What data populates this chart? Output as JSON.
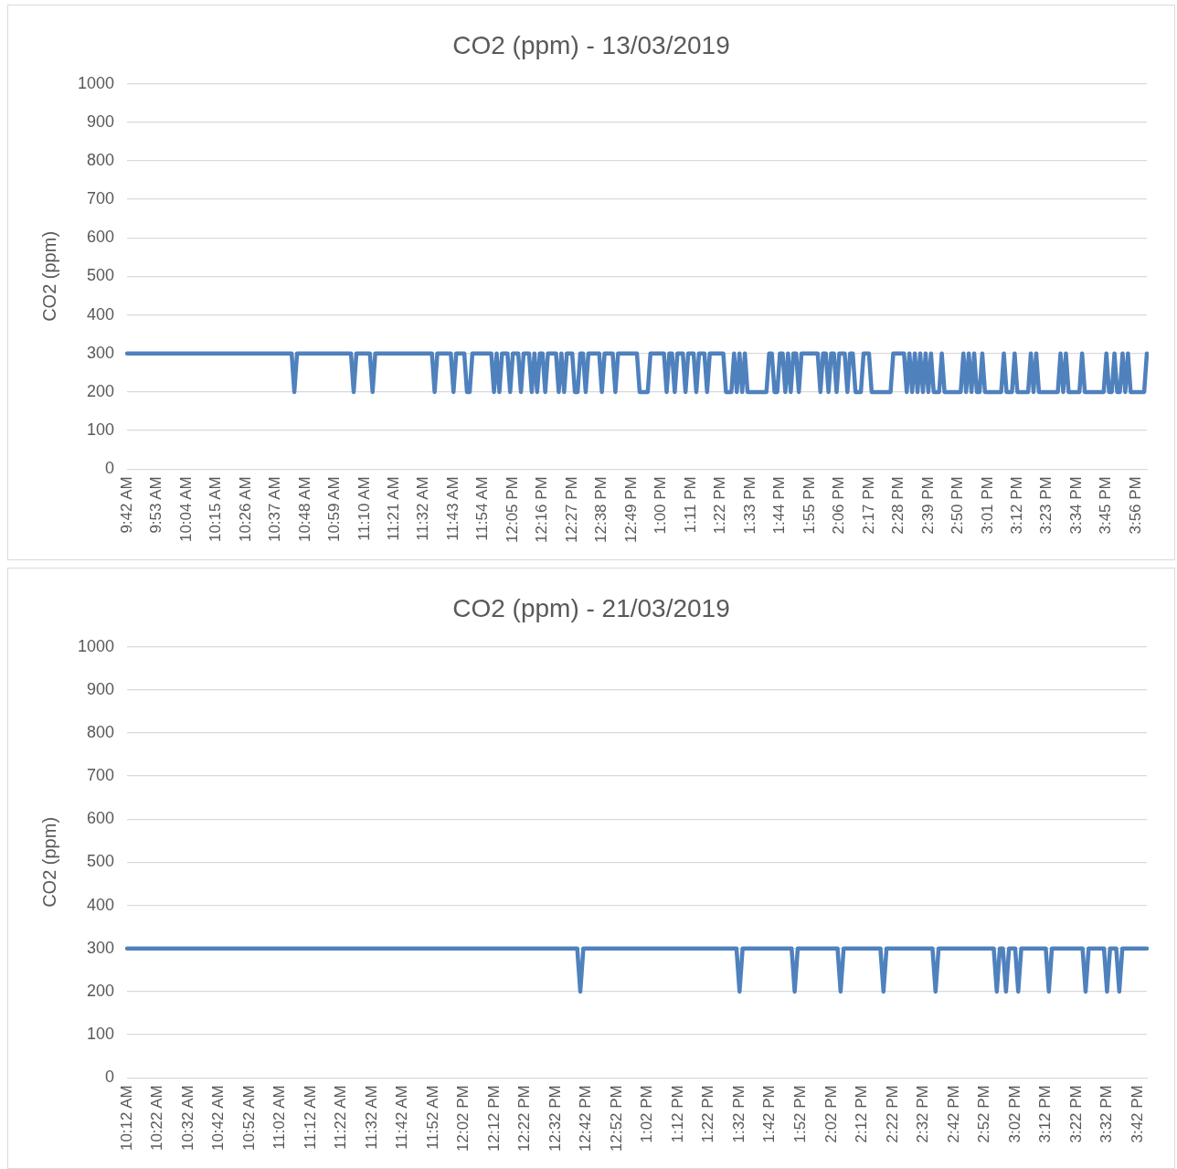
{
  "chart_data": [
    {
      "type": "line",
      "title": "CO2 (ppm) - 13/03/2019",
      "ylabel": "CO2 (ppm)",
      "ylim": [
        0,
        1000
      ],
      "yticks": [
        0,
        100,
        200,
        300,
        400,
        500,
        600,
        700,
        800,
        900,
        1000
      ],
      "grid": "y",
      "marker": "none",
      "categories": [
        "9:42 AM",
        null,
        null,
        null,
        null,
        null,
        null,
        null,
        null,
        null,
        null,
        "9:53 AM",
        null,
        null,
        null,
        null,
        null,
        null,
        null,
        null,
        null,
        null,
        "10:04 AM",
        null,
        null,
        null,
        null,
        null,
        null,
        null,
        null,
        null,
        null,
        "10:15 AM",
        null,
        null,
        null,
        null,
        null,
        null,
        null,
        null,
        null,
        null,
        "10:26 AM",
        null,
        null,
        null,
        null,
        null,
        null,
        null,
        null,
        null,
        null,
        "10:37 AM",
        null,
        null,
        null,
        null,
        null,
        null,
        null,
        null,
        null,
        null,
        "10:48 AM",
        null,
        null,
        null,
        null,
        null,
        null,
        null,
        null,
        null,
        null,
        "10:59 AM",
        null,
        null,
        null,
        null,
        null,
        null,
        null,
        null,
        null,
        null,
        "11:10 AM",
        null,
        null,
        null,
        null,
        null,
        null,
        null,
        null,
        null,
        null,
        "11:21 AM",
        null,
        null,
        null,
        null,
        null,
        null,
        null,
        null,
        null,
        null,
        "11:32 AM",
        null,
        null,
        null,
        null,
        null,
        null,
        null,
        null,
        null,
        null,
        "11:43 AM",
        null,
        null,
        null,
        null,
        null,
        null,
        null,
        null,
        null,
        null,
        "11:54 AM",
        null,
        null,
        null,
        null,
        null,
        null,
        null,
        null,
        null,
        null,
        "12:05 PM",
        null,
        null,
        null,
        null,
        null,
        null,
        null,
        null,
        null,
        null,
        "12:16 PM",
        null,
        null,
        null,
        null,
        null,
        null,
        null,
        null,
        null,
        null,
        "12:27 PM",
        null,
        null,
        null,
        null,
        null,
        null,
        null,
        null,
        null,
        null,
        "12:38 PM",
        null,
        null,
        null,
        null,
        null,
        null,
        null,
        null,
        null,
        null,
        "12:49 PM",
        null,
        null,
        null,
        null,
        null,
        null,
        null,
        null,
        null,
        null,
        "1:00 PM",
        null,
        null,
        null,
        null,
        null,
        null,
        null,
        null,
        null,
        null,
        "1:11 PM",
        null,
        null,
        null,
        null,
        null,
        null,
        null,
        null,
        null,
        null,
        "1:22 PM",
        null,
        null,
        null,
        null,
        null,
        null,
        null,
        null,
        null,
        null,
        "1:33 PM",
        null,
        null,
        null,
        null,
        null,
        null,
        null,
        null,
        null,
        null,
        "1:44 PM",
        null,
        null,
        null,
        null,
        null,
        null,
        null,
        null,
        null,
        null,
        "1:55 PM",
        null,
        null,
        null,
        null,
        null,
        null,
        null,
        null,
        null,
        null,
        "2:06 PM",
        null,
        null,
        null,
        null,
        null,
        null,
        null,
        null,
        null,
        null,
        "2:17 PM",
        null,
        null,
        null,
        null,
        null,
        null,
        null,
        null,
        null,
        null,
        "2:28 PM",
        null,
        null,
        null,
        null,
        null,
        null,
        null,
        null,
        null,
        null,
        "2:39 PM",
        null,
        null,
        null,
        null,
        null,
        null,
        null,
        null,
        null,
        null,
        "2:50 PM",
        null,
        null,
        null,
        null,
        null,
        null,
        null,
        null,
        null,
        null,
        "3:01 PM",
        null,
        null,
        null,
        null,
        null,
        null,
        null,
        null,
        null,
        null,
        "3:12 PM",
        null,
        null,
        null,
        null,
        null,
        null,
        null,
        null,
        null,
        null,
        "3:23 PM",
        null,
        null,
        null,
        null,
        null,
        null,
        null,
        null,
        null,
        null,
        "3:34 PM",
        null,
        null,
        null,
        null,
        null,
        null,
        null,
        null,
        null,
        null,
        "3:45 PM",
        null,
        null,
        null,
        null,
        null,
        null,
        null,
        null,
        null,
        null,
        "3:56 PM",
        null,
        null,
        null,
        null
      ],
      "series": [
        {
          "color": "#4f81bd",
          "values": [
            300,
            300,
            300,
            300,
            300,
            300,
            300,
            300,
            300,
            300,
            300,
            300,
            300,
            300,
            300,
            300,
            300,
            300,
            300,
            300,
            300,
            300,
            300,
            300,
            300,
            300,
            300,
            300,
            300,
            300,
            300,
            300,
            300,
            300,
            300,
            300,
            300,
            300,
            300,
            300,
            300,
            300,
            300,
            300,
            300,
            300,
            300,
            300,
            300,
            300,
            300,
            300,
            300,
            300,
            300,
            300,
            300,
            300,
            300,
            300,
            300,
            300,
            200,
            300,
            300,
            300,
            300,
            300,
            300,
            300,
            300,
            300,
            300,
            300,
            300,
            300,
            300,
            300,
            300,
            300,
            300,
            300,
            300,
            300,
            200,
            300,
            300,
            300,
            300,
            300,
            300,
            200,
            300,
            300,
            300,
            300,
            300,
            300,
            300,
            300,
            300,
            300,
            300,
            300,
            300,
            300,
            300,
            300,
            300,
            300,
            300,
            300,
            300,
            300,
            200,
            300,
            300,
            300,
            300,
            300,
            300,
            200,
            300,
            300,
            300,
            300,
            200,
            200,
            300,
            300,
            300,
            300,
            300,
            300,
            300,
            300,
            200,
            300,
            200,
            300,
            300,
            300,
            200,
            300,
            300,
            300,
            200,
            300,
            300,
            300,
            200,
            300,
            200,
            300,
            300,
            200,
            300,
            300,
            300,
            300,
            200,
            300,
            200,
            300,
            300,
            300,
            200,
            200,
            300,
            300,
            200,
            300,
            300,
            300,
            300,
            300,
            200,
            300,
            300,
            300,
            300,
            200,
            300,
            300,
            300,
            300,
            300,
            300,
            300,
            300,
            200,
            200,
            200,
            200,
            300,
            300,
            300,
            300,
            300,
            300,
            200,
            300,
            300,
            200,
            300,
            300,
            300,
            200,
            300,
            300,
            300,
            200,
            300,
            300,
            300,
            200,
            300,
            300,
            300,
            300,
            300,
            300,
            200,
            200,
            200,
            300,
            200,
            300,
            200,
            300,
            200,
            200,
            200,
            200,
            200,
            200,
            200,
            200,
            300,
            300,
            200,
            200,
            300,
            300,
            200,
            300,
            200,
            300,
            300,
            200,
            300,
            300,
            300,
            300,
            300,
            300,
            300,
            200,
            300,
            300,
            200,
            300,
            300,
            200,
            300,
            300,
            300,
            200,
            300,
            300,
            200,
            200,
            200,
            300,
            300,
            300,
            200,
            200,
            200,
            200,
            200,
            200,
            200,
            200,
            300,
            300,
            300,
            300,
            300,
            200,
            300,
            200,
            300,
            200,
            300,
            200,
            300,
            200,
            300,
            200,
            200,
            200,
            300,
            200,
            200,
            200,
            200,
            200,
            200,
            200,
            300,
            200,
            300,
            200,
            300,
            200,
            200,
            300,
            200,
            200,
            200,
            200,
            200,
            200,
            200,
            300,
            200,
            200,
            200,
            300,
            200,
            200,
            200,
            200,
            200,
            300,
            200,
            300,
            200,
            200,
            200,
            200,
            200,
            200,
            200,
            200,
            300,
            200,
            300,
            200,
            200,
            200,
            200,
            200,
            300,
            200,
            200,
            200,
            200,
            200,
            200,
            200,
            200,
            300,
            200,
            200,
            300,
            200,
            200,
            300,
            200,
            300,
            200,
            200,
            200,
            200,
            200,
            200,
            300
          ]
        }
      ]
    },
    {
      "type": "line",
      "title": "CO2 (ppm) - 21/03/2019",
      "ylabel": "CO2 (ppm)",
      "ylim": [
        0,
        1000
      ],
      "yticks": [
        0,
        100,
        200,
        300,
        400,
        500,
        600,
        700,
        800,
        900,
        1000
      ],
      "grid": "y",
      "marker": "none",
      "categories": [
        "10:12 AM",
        null,
        null,
        null,
        null,
        null,
        null,
        null,
        null,
        null,
        "10:22 AM",
        null,
        null,
        null,
        null,
        null,
        null,
        null,
        null,
        null,
        "10:32 AM",
        null,
        null,
        null,
        null,
        null,
        null,
        null,
        null,
        null,
        "10:42 AM",
        null,
        null,
        null,
        null,
        null,
        null,
        null,
        null,
        null,
        "10:52 AM",
        null,
        null,
        null,
        null,
        null,
        null,
        null,
        null,
        null,
        "11:02 AM",
        null,
        null,
        null,
        null,
        null,
        null,
        null,
        null,
        null,
        "11:12 AM",
        null,
        null,
        null,
        null,
        null,
        null,
        null,
        null,
        null,
        "11:22 AM",
        null,
        null,
        null,
        null,
        null,
        null,
        null,
        null,
        null,
        "11:32 AM",
        null,
        null,
        null,
        null,
        null,
        null,
        null,
        null,
        null,
        "11:42 AM",
        null,
        null,
        null,
        null,
        null,
        null,
        null,
        null,
        null,
        "11:52 AM",
        null,
        null,
        null,
        null,
        null,
        null,
        null,
        null,
        null,
        "12:02 PM",
        null,
        null,
        null,
        null,
        null,
        null,
        null,
        null,
        null,
        "12:12 PM",
        null,
        null,
        null,
        null,
        null,
        null,
        null,
        null,
        null,
        "12:22 PM",
        null,
        null,
        null,
        null,
        null,
        null,
        null,
        null,
        null,
        "12:32 PM",
        null,
        null,
        null,
        null,
        null,
        null,
        null,
        null,
        null,
        "12:42 PM",
        null,
        null,
        null,
        null,
        null,
        null,
        null,
        null,
        null,
        "12:52 PM",
        null,
        null,
        null,
        null,
        null,
        null,
        null,
        null,
        null,
        "1:02 PM",
        null,
        null,
        null,
        null,
        null,
        null,
        null,
        null,
        null,
        "1:12 PM",
        null,
        null,
        null,
        null,
        null,
        null,
        null,
        null,
        null,
        "1:22 PM",
        null,
        null,
        null,
        null,
        null,
        null,
        null,
        null,
        null,
        "1:32 PM",
        null,
        null,
        null,
        null,
        null,
        null,
        null,
        null,
        null,
        "1:42 PM",
        null,
        null,
        null,
        null,
        null,
        null,
        null,
        null,
        null,
        "1:52 PM",
        null,
        null,
        null,
        null,
        null,
        null,
        null,
        null,
        null,
        "2:02 PM",
        null,
        null,
        null,
        null,
        null,
        null,
        null,
        null,
        null,
        "2:12 PM",
        null,
        null,
        null,
        null,
        null,
        null,
        null,
        null,
        null,
        "2:22 PM",
        null,
        null,
        null,
        null,
        null,
        null,
        null,
        null,
        null,
        "2:32 PM",
        null,
        null,
        null,
        null,
        null,
        null,
        null,
        null,
        null,
        "2:42 PM",
        null,
        null,
        null,
        null,
        null,
        null,
        null,
        null,
        null,
        "2:52 PM",
        null,
        null,
        null,
        null,
        null,
        null,
        null,
        null,
        null,
        "3:02 PM",
        null,
        null,
        null,
        null,
        null,
        null,
        null,
        null,
        null,
        "3:12 PM",
        null,
        null,
        null,
        null,
        null,
        null,
        null,
        null,
        null,
        "3:22 PM",
        null,
        null,
        null,
        null,
        null,
        null,
        null,
        null,
        null,
        "3:32 PM",
        null,
        null,
        null,
        null,
        null,
        null,
        null,
        null,
        null,
        "3:42 PM",
        null,
        null,
        null
      ],
      "series": [
        {
          "color": "#4f81bd",
          "values": [
            300,
            300,
            300,
            300,
            300,
            300,
            300,
            300,
            300,
            300,
            300,
            300,
            300,
            300,
            300,
            300,
            300,
            300,
            300,
            300,
            300,
            300,
            300,
            300,
            300,
            300,
            300,
            300,
            300,
            300,
            300,
            300,
            300,
            300,
            300,
            300,
            300,
            300,
            300,
            300,
            300,
            300,
            300,
            300,
            300,
            300,
            300,
            300,
            300,
            300,
            300,
            300,
            300,
            300,
            300,
            300,
            300,
            300,
            300,
            300,
            300,
            300,
            300,
            300,
            300,
            300,
            300,
            300,
            300,
            300,
            300,
            300,
            300,
            300,
            300,
            300,
            300,
            300,
            300,
            300,
            300,
            300,
            300,
            300,
            300,
            300,
            300,
            300,
            300,
            300,
            300,
            300,
            300,
            300,
            300,
            300,
            300,
            300,
            300,
            300,
            300,
            300,
            300,
            300,
            300,
            300,
            300,
            300,
            300,
            300,
            300,
            300,
            300,
            300,
            300,
            300,
            300,
            300,
            300,
            300,
            300,
            300,
            300,
            300,
            300,
            300,
            300,
            300,
            300,
            300,
            300,
            300,
            300,
            300,
            300,
            300,
            300,
            300,
            300,
            300,
            300,
            300,
            300,
            300,
            300,
            300,
            300,
            300,
            200,
            300,
            300,
            300,
            300,
            300,
            300,
            300,
            300,
            300,
            300,
            300,
            300,
            300,
            300,
            300,
            300,
            300,
            300,
            300,
            300,
            300,
            300,
            300,
            300,
            300,
            300,
            300,
            300,
            300,
            300,
            300,
            300,
            300,
            300,
            300,
            300,
            300,
            300,
            300,
            300,
            300,
            300,
            300,
            300,
            300,
            300,
            300,
            300,
            300,
            300,
            300,
            200,
            300,
            300,
            300,
            300,
            300,
            300,
            300,
            300,
            300,
            300,
            300,
            300,
            300,
            300,
            300,
            300,
            300,
            200,
            300,
            300,
            300,
            300,
            300,
            300,
            300,
            300,
            300,
            300,
            300,
            300,
            300,
            300,
            200,
            300,
            300,
            300,
            300,
            300,
            300,
            300,
            300,
            300,
            300,
            300,
            300,
            300,
            200,
            300,
            300,
            300,
            300,
            300,
            300,
            300,
            300,
            300,
            300,
            300,
            300,
            300,
            300,
            300,
            300,
            200,
            300,
            300,
            300,
            300,
            300,
            300,
            300,
            300,
            300,
            300,
            300,
            300,
            300,
            300,
            300,
            300,
            300,
            300,
            300,
            200,
            300,
            300,
            200,
            300,
            300,
            300,
            200,
            300,
            300,
            300,
            300,
            300,
            300,
            300,
            300,
            300,
            200,
            300,
            300,
            300,
            300,
            300,
            300,
            300,
            300,
            300,
            300,
            300,
            200,
            300,
            300,
            300,
            300,
            300,
            300,
            200,
            300,
            300,
            300,
            200,
            300,
            300,
            300,
            300,
            300,
            300,
            300,
            300,
            300
          ]
        }
      ]
    }
  ]
}
